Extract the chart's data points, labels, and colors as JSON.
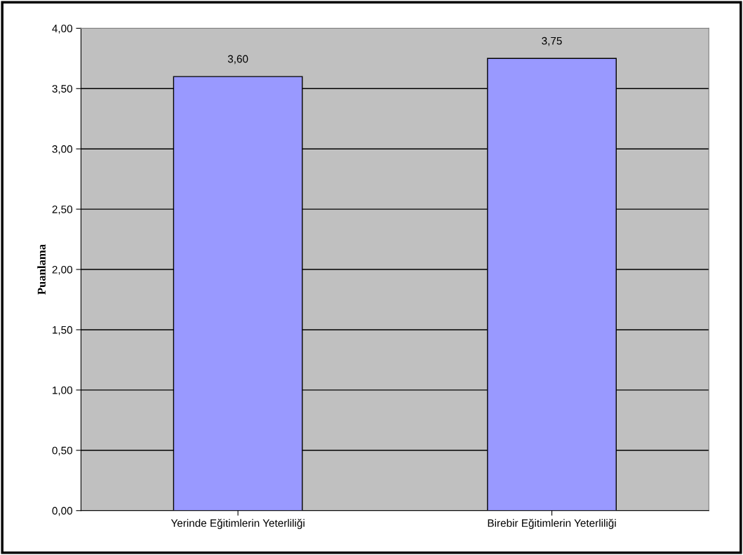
{
  "chart_data": {
    "type": "bar",
    "ylabel": "Puanlama",
    "categories": [
      "Yerinde Eğitimlerin Yeterliliği",
      "Birebir Eğitimlerin Yeterliliği"
    ],
    "values": [
      3.6,
      3.75
    ],
    "value_labels": [
      "3,60",
      "3,75"
    ],
    "color": "#9999ff",
    "ylim": [
      0,
      4
    ],
    "yticks": [
      {
        "value": 0,
        "label": "0,00"
      },
      {
        "value": 0.5,
        "label": "0,50"
      },
      {
        "value": 1,
        "label": "1,00"
      },
      {
        "value": 1.5,
        "label": "1,50"
      },
      {
        "value": 2,
        "label": "2,00"
      },
      {
        "value": 2.5,
        "label": "2,50"
      },
      {
        "value": 3,
        "label": "3,00"
      },
      {
        "value": 3.5,
        "label": "3,50"
      },
      {
        "value": 4,
        "label": "4,00"
      }
    ],
    "grid": "y"
  }
}
